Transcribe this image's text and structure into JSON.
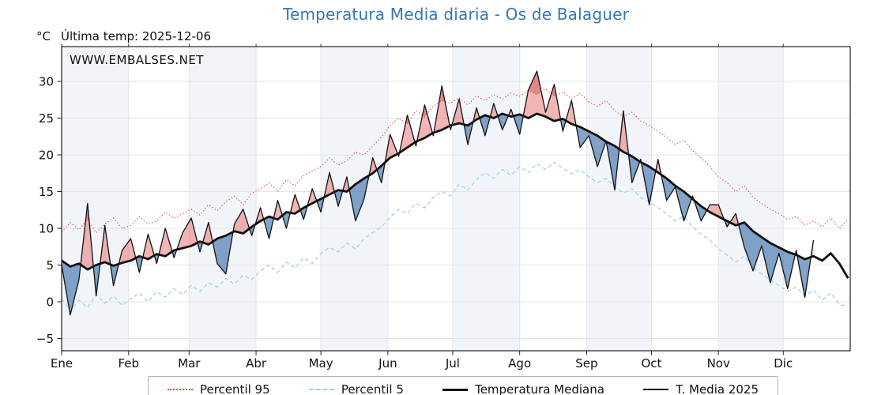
{
  "chart_data": {
    "type": "line",
    "title": "Temperatura Media diaria - Os de Balaguer",
    "ylabel": "°C",
    "last_temp_label": "Última temp: 2025-12-06",
    "watermark": "WWW.EMBALSES.NET",
    "x_unit": "day_of_year",
    "days_in_year": 365,
    "step_days": 4,
    "ylim": [
      -6.7,
      34.7
    ],
    "yticks": [
      -5,
      0,
      5,
      10,
      15,
      20,
      25,
      30
    ],
    "grid": true,
    "legend_position": "bottom",
    "months": [
      {
        "label": "Ene",
        "start_day": 0
      },
      {
        "label": "Feb",
        "start_day": 31
      },
      {
        "label": "Mar",
        "start_day": 59
      },
      {
        "label": "Abr",
        "start_day": 90
      },
      {
        "label": "May",
        "start_day": 120
      },
      {
        "label": "Jun",
        "start_day": 151
      },
      {
        "label": "Jul",
        "start_day": 181
      },
      {
        "label": "Ago",
        "start_day": 212
      },
      {
        "label": "Sep",
        "start_day": 243
      },
      {
        "label": "Oct",
        "start_day": 273
      },
      {
        "label": "Nov",
        "start_day": 304
      },
      {
        "label": "Dic",
        "start_day": 334
      }
    ],
    "series": [
      {
        "name": "Percentil 95",
        "style": "dotted",
        "color": "#e04b4b",
        "width": 1.1,
        "values": [
          9.5,
          10.8,
          9.8,
          11.2,
          9.4,
          10.6,
          11.4,
          10.0,
          10.4,
          11.6,
          10.6,
          11.0,
          12.2,
          11.4,
          12.0,
          12.6,
          11.8,
          13.2,
          12.4,
          13.6,
          14.4,
          13.2,
          14.8,
          15.4,
          16.2,
          15.0,
          16.6,
          15.8,
          17.2,
          17.8,
          18.4,
          19.6,
          18.6,
          19.2,
          20.4,
          20.0,
          21.2,
          22.4,
          24.0,
          25.0,
          24.2,
          26.0,
          25.2,
          26.6,
          27.4,
          27.0,
          27.8,
          26.8,
          28.0,
          27.4,
          28.2,
          27.6,
          28.4,
          28.0,
          28.8,
          28.2,
          29.0,
          28.0,
          28.6,
          27.6,
          28.4,
          27.2,
          26.6,
          27.4,
          26.0,
          25.2,
          25.8,
          24.6,
          24.0,
          23.2,
          22.4,
          21.4,
          22.0,
          20.6,
          19.6,
          18.4,
          17.0,
          16.2,
          15.0,
          15.8,
          14.2,
          13.4,
          12.6,
          12.0,
          11.2,
          11.6,
          10.4,
          11.0,
          10.2,
          11.4,
          10.0,
          11.2
        ]
      },
      {
        "name": "Percentil 5",
        "style": "dashed",
        "color": "#a6cee3",
        "width": 1.3,
        "values": [
          0.5,
          -1.2,
          0.2,
          -0.8,
          1.0,
          -0.2,
          0.8,
          -0.5,
          0.4,
          1.2,
          0.0,
          1.4,
          0.6,
          1.8,
          1.0,
          2.2,
          1.4,
          2.6,
          2.0,
          3.2,
          2.4,
          3.6,
          3.0,
          4.2,
          5.0,
          4.0,
          5.4,
          4.6,
          6.0,
          5.2,
          6.6,
          7.4,
          6.8,
          8.0,
          7.2,
          8.6,
          9.4,
          10.2,
          11.5,
          12.6,
          12.0,
          13.4,
          12.8,
          14.2,
          15.0,
          14.4,
          16.0,
          15.2,
          16.6,
          17.6,
          16.8,
          18.0,
          17.2,
          18.4,
          17.6,
          18.8,
          18.0,
          19.0,
          18.2,
          17.4,
          18.0,
          17.0,
          16.2,
          16.8,
          15.6,
          14.8,
          15.4,
          14.2,
          13.6,
          12.8,
          12.0,
          11.0,
          11.6,
          10.2,
          9.2,
          8.4,
          7.2,
          6.4,
          5.4,
          6.2,
          4.6,
          3.8,
          3.0,
          2.2,
          1.4,
          2.0,
          0.8,
          1.6,
          0.2,
          1.2,
          -0.4,
          -0.6
        ]
      },
      {
        "name": "Temperatura Mediana",
        "style": "solid",
        "color": "#111111",
        "width": 2.8,
        "values": [
          5.6,
          4.8,
          5.2,
          4.4,
          5.0,
          5.4,
          4.9,
          5.3,
          5.6,
          6.2,
          5.8,
          6.5,
          6.2,
          7.0,
          7.3,
          7.6,
          8.2,
          7.8,
          8.6,
          9.0,
          9.6,
          9.3,
          10.2,
          11.0,
          11.6,
          11.2,
          12.2,
          12.0,
          12.8,
          13.4,
          14.0,
          14.6,
          15.2,
          15.0,
          16.0,
          16.8,
          17.5,
          18.5,
          19.6,
          20.2,
          21.0,
          21.8,
          22.3,
          23.0,
          23.4,
          24.0,
          24.3,
          24.0,
          24.8,
          25.4,
          25.0,
          25.6,
          25.2,
          25.5,
          25.0,
          25.6,
          25.2,
          24.6,
          24.9,
          24.2,
          23.8,
          23.2,
          22.6,
          21.8,
          21.2,
          20.4,
          19.8,
          19.0,
          18.4,
          17.6,
          16.8,
          15.8,
          15.0,
          14.0,
          13.0,
          12.2,
          11.6,
          11.0,
          10.4,
          10.8,
          9.6,
          8.8,
          8.0,
          7.4,
          6.8,
          6.4,
          5.8,
          6.2,
          5.6,
          6.6,
          5.2,
          3.2
        ]
      },
      {
        "name": "T. Media 2025",
        "style": "solid",
        "color": "#111111",
        "width": 1.3,
        "values": [
          5.0,
          -1.8,
          3.0,
          13.4,
          0.8,
          10.4,
          2.2,
          7.0,
          8.6,
          4.0,
          9.2,
          5.2,
          10.0,
          6.0,
          9.4,
          11.4,
          6.8,
          10.8,
          5.2,
          3.8,
          10.6,
          12.6,
          9.0,
          12.8,
          8.6,
          13.8,
          10.0,
          14.6,
          11.2,
          15.4,
          12.2,
          17.6,
          13.0,
          17.0,
          11.0,
          14.0,
          19.6,
          16.2,
          22.8,
          19.8,
          25.4,
          21.2,
          26.8,
          22.6,
          29.4,
          23.4,
          27.6,
          21.4,
          26.4,
          22.6,
          27.0,
          23.4,
          26.2,
          22.8,
          28.8,
          31.4,
          25.8,
          29.6,
          23.2,
          27.4,
          21.0,
          22.6,
          18.4,
          21.9,
          15.2,
          26.0,
          16.2,
          19.4,
          13.2,
          19.4,
          13.8,
          15.6,
          11.0,
          14.4,
          11.0,
          13.2,
          13.2,
          10.2,
          12.0,
          7.4,
          4.2,
          7.6,
          2.6,
          6.6,
          1.8,
          7.0,
          0.6,
          8.4
        ]
      }
    ],
    "fills": {
      "above_median": "rgba(228,100,100,0.48)",
      "below_median": "rgba(56,108,168,0.62)",
      "above_p95": "rgba(195,35,35,0.32)",
      "below_p5": "rgba(15,60,125,0.42)"
    },
    "colors": {
      "band": "#f1f5fa",
      "grid": "#e4e4e4",
      "axis": "#222222",
      "title": "#3377b3",
      "watermark": "#3377b3"
    }
  }
}
